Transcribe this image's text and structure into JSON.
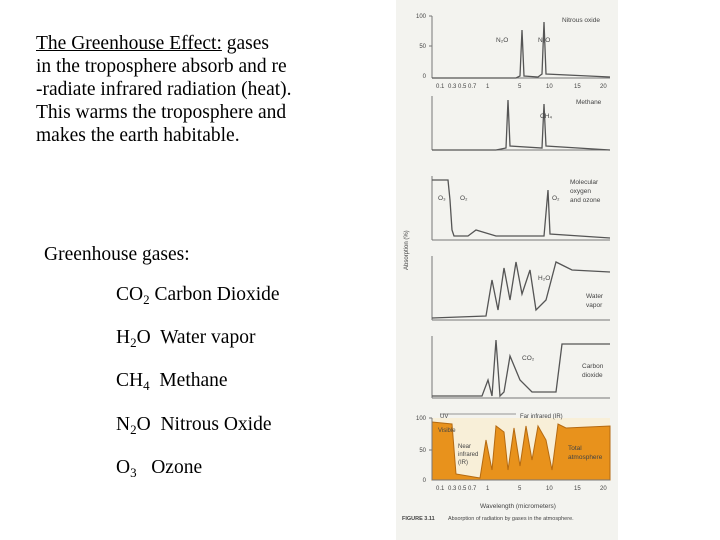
{
  "intro": {
    "title": "The Greenhouse Effect:",
    "line1_rest": " gases",
    "line2": "in the troposphere absorb and re",
    "line3": "-radiate infrared radiation (heat).",
    "line4": "This warms the troposphere and",
    "line5": "makes the earth habitable."
  },
  "gases_title": "Greenhouse gases:",
  "gases": [
    {
      "formula": "CO",
      "sub": "2",
      "name": "Carbon Dioxide"
    },
    {
      "formula": "H",
      "sub": "2",
      "after": "O",
      "name": "Water vapor"
    },
    {
      "formula": "CH",
      "sub": "4",
      "name": "Methane"
    },
    {
      "formula": "N",
      "sub": "2",
      "after": "O",
      "name": "Nitrous Oxide"
    },
    {
      "formula": "O",
      "sub": "3",
      "name": "Ozone"
    }
  ],
  "figure": {
    "panel_labels": {
      "nitrous": "Nitrous oxide",
      "methane": "Methane",
      "oxygen1": "Molecular",
      "oxygen2": "oxygen",
      "oxygen3": "and ozone",
      "water1": "Water",
      "water2": "vapor",
      "co2_1": "Carbon",
      "co2_2": "dioxide",
      "total1": "Total",
      "total2": "atmosphere"
    },
    "species": {
      "n2o_a": "N₂O",
      "n2o_b": "N₂O",
      "ch4": "CH₄",
      "o3": "O₃",
      "o2": "O₂",
      "o2b": "O₂",
      "h2o": "H₂O",
      "co2": "CO₂"
    },
    "ticks_top": [
      "100",
      "50",
      "0"
    ],
    "ticks_bottom": [
      "100",
      "50",
      "0"
    ],
    "x_ticks": [
      "0.1",
      "0.3",
      "0.5",
      "0.7",
      "1",
      "5",
      "10",
      "15",
      "20"
    ],
    "x_ticks_bottom": [
      "0.1",
      "0.3",
      "0.5",
      "0.7",
      "1",
      "5",
      "10",
      "15",
      "20"
    ],
    "y_axis_label": "Absorption (%)",
    "uv": "UV",
    "far_ir": "Far infrared (IR)",
    "visible": "Visible",
    "near_ir1": "Near",
    "near_ir2": "infrared",
    "near_ir3": "(IR)",
    "x_label": "Wavelength (micrometers)",
    "caption_num": "FIGURE 3.11",
    "caption": "Absorption of radiation by gases in the atmosphere."
  }
}
